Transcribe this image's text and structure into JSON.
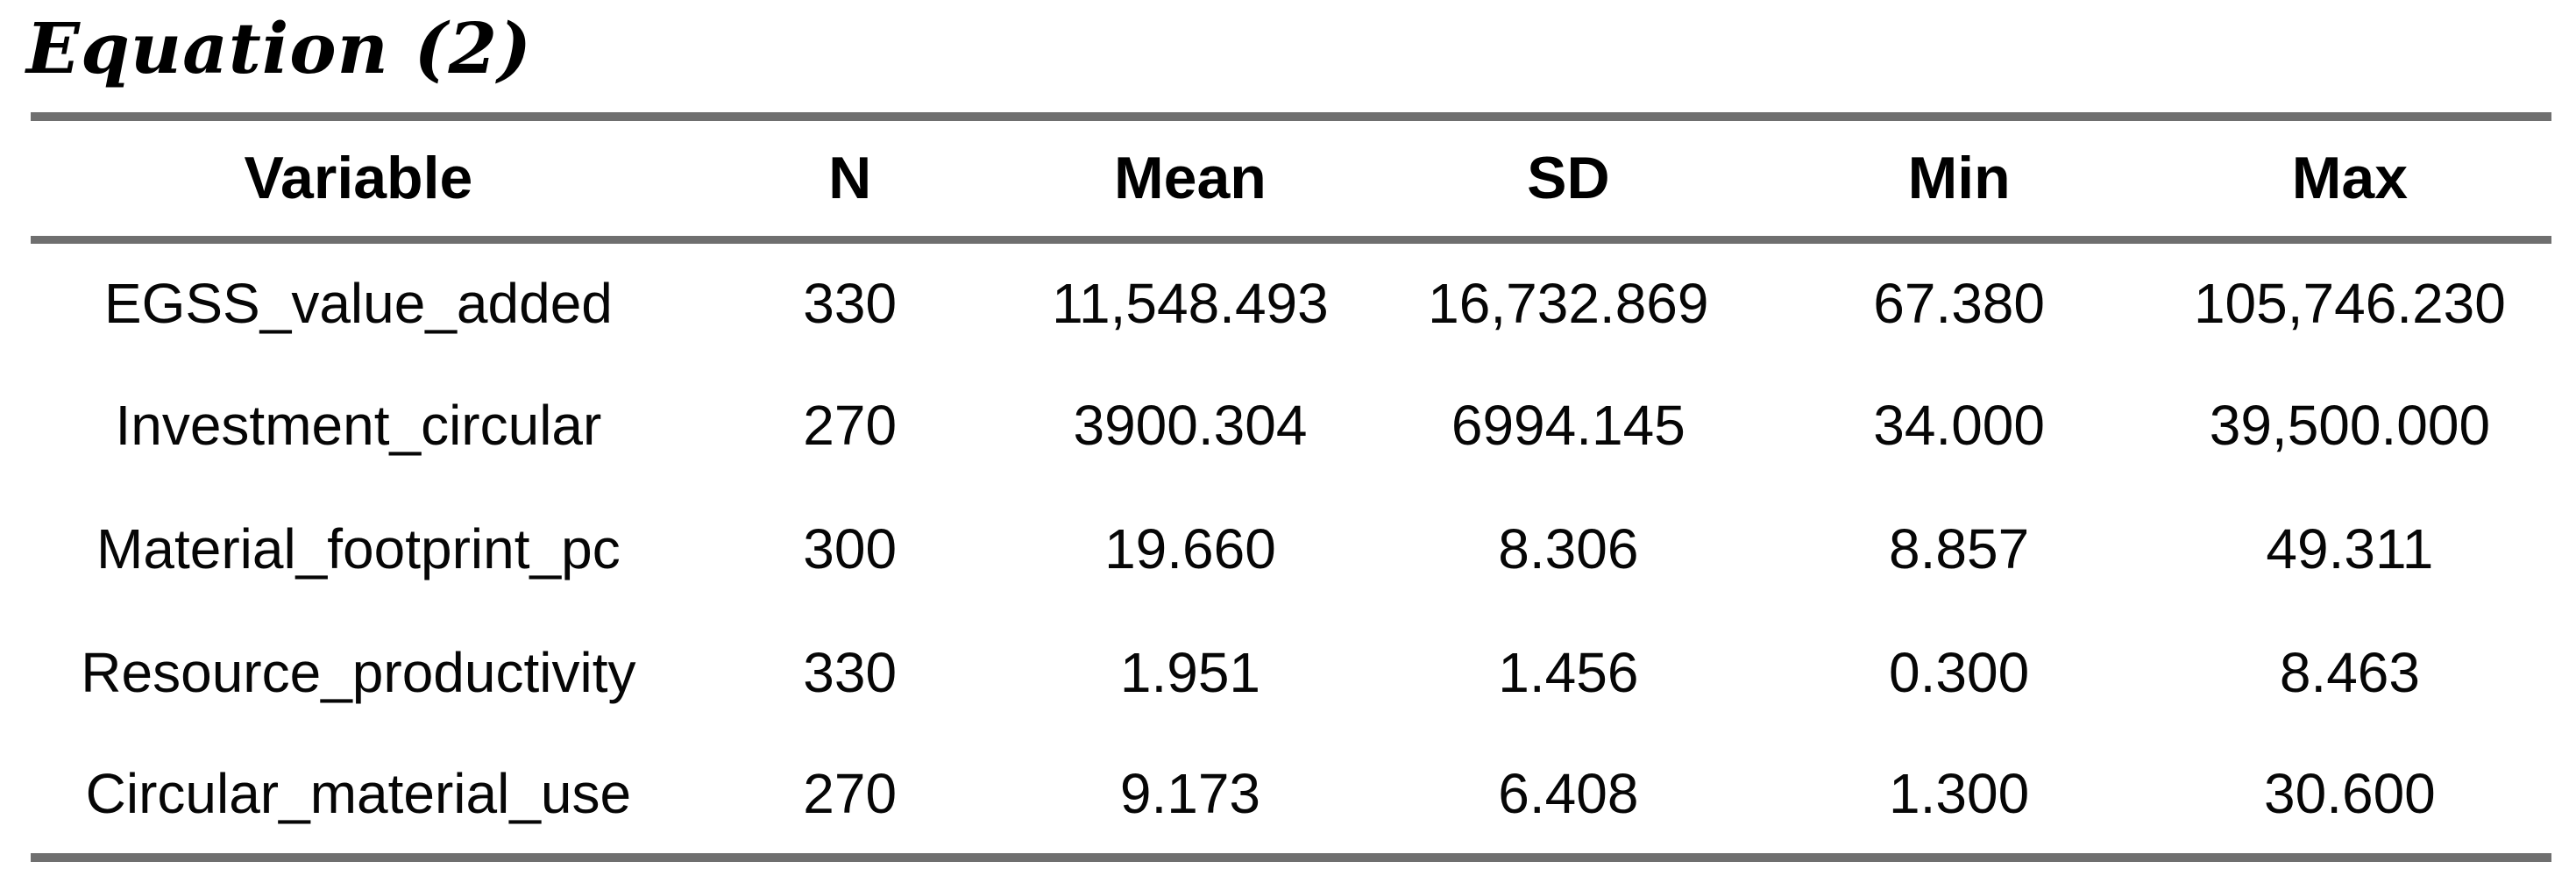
{
  "title": "Equation (2)",
  "table": {
    "columns": [
      "Variable",
      "N",
      "Mean",
      "SD",
      "Min",
      "Max"
    ],
    "rows": [
      [
        "EGSS_value_added",
        "330",
        "11,548.493",
        "16,732.869",
        "67.380",
        "105,746.230"
      ],
      [
        "Investment_circular",
        "270",
        "3900.304",
        "6994.145",
        "34.000",
        "39,500.000"
      ],
      [
        "Material_footprint_pc",
        "300",
        "19.660",
        "8.306",
        "8.857",
        "49.311"
      ],
      [
        "Resource_productivity",
        "330",
        "1.951",
        "1.456",
        "0.300",
        "8.463"
      ],
      [
        "Circular_material_use",
        "270",
        "9.173",
        "6.408",
        "1.300",
        "30.600"
      ]
    ],
    "rule_color": "#6f6f6f",
    "text_color": "#000000"
  }
}
